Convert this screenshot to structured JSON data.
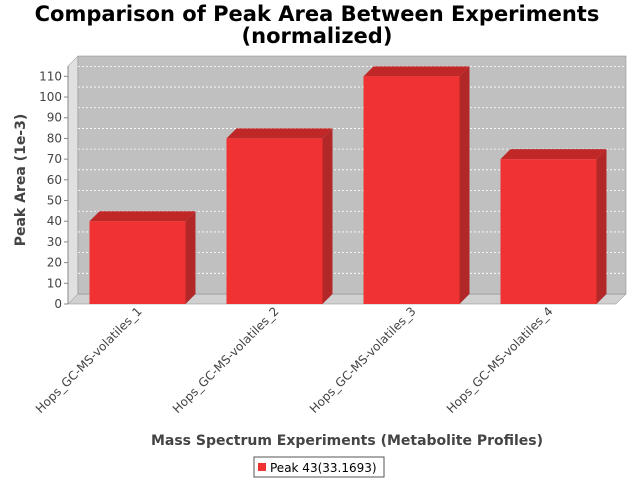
{
  "chart_data": {
    "type": "bar",
    "title": "Comparison of Peak Area Between Experiments",
    "subtitle": "(normalized)",
    "xlabel": "Mass Spectrum Experiments (Metabolite Profiles)",
    "ylabel": "Peak Area (1e-3)",
    "categories": [
      "Hops_GC-MS-volatiles_1",
      "Hops_GC-MS-volatiles_2",
      "Hops_GC-MS-volatiles_3",
      "Hops_GC-MS-volatiles_4"
    ],
    "series": [
      {
        "name": "Peak 43(33.1693)",
        "values": [
          40,
          80,
          110,
          70
        ],
        "color": "#f03232"
      }
    ],
    "ylim": [
      0,
      115
    ],
    "yticks": [
      0,
      10,
      20,
      30,
      40,
      50,
      60,
      70,
      80,
      90,
      100,
      110
    ],
    "grid": true,
    "legend_position": "bottom",
    "colors": {
      "plot_background": "#c0c0c0",
      "wall": "#e0e0e0",
      "floor": "#d0d0d0",
      "bar_front": "#f03232",
      "bar_top": "#c02828",
      "bar_side": "#b22828"
    }
  }
}
